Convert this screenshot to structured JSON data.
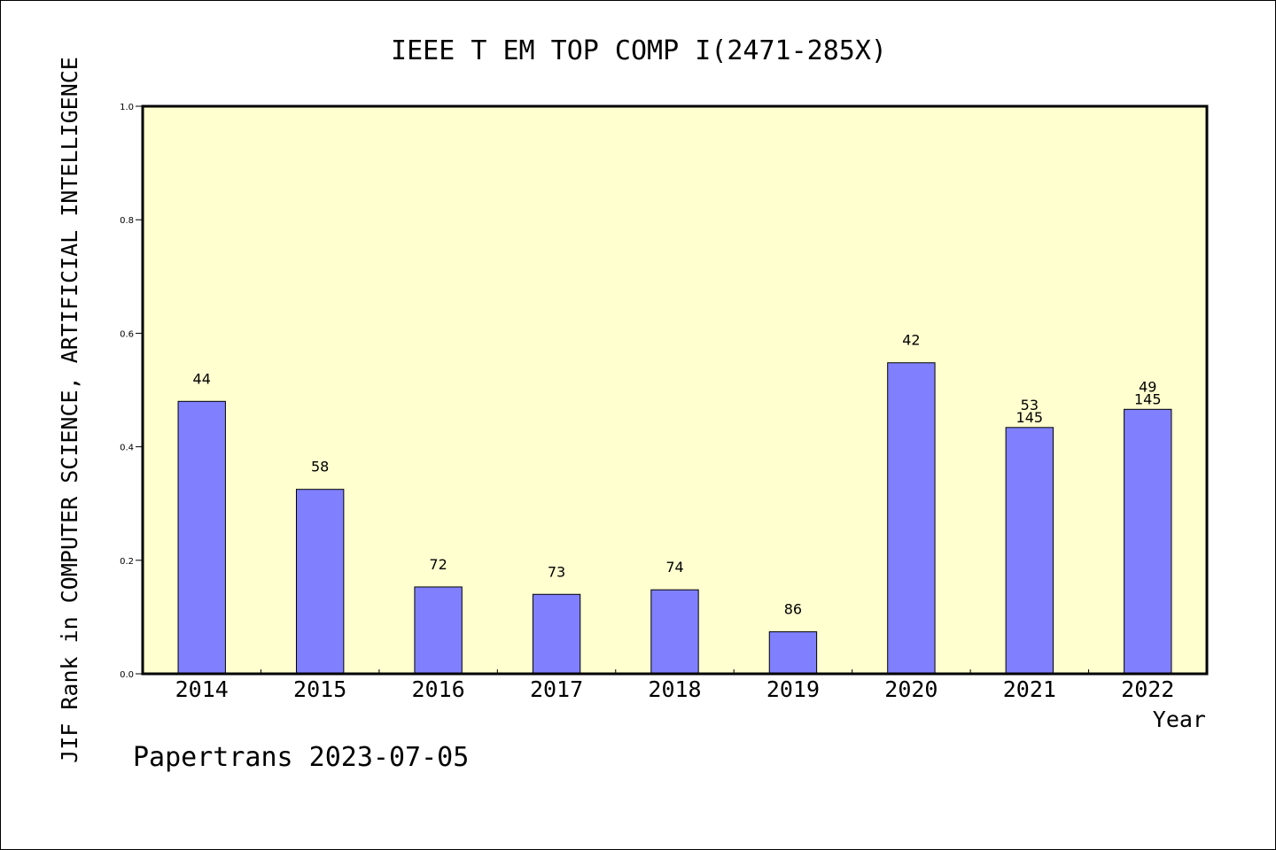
{
  "chart_data": {
    "type": "bar",
    "title": "IEEE T EM TOP COMP I(2471-285X)",
    "xlabel": "Year",
    "ylabel": "JIF Rank in COMPUTER SCIENCE, ARTIFICIAL INTELLIGENCE",
    "ylim": [
      0,
      1.0
    ],
    "yticks": [
      "0.0",
      "0.2",
      "0.4",
      "0.6",
      "0.8",
      "1.0"
    ],
    "categories": [
      "2014",
      "2015",
      "2016",
      "2017",
      "2018",
      "2019",
      "2020",
      "2021",
      "2022"
    ],
    "values": [
      0.48,
      0.325,
      0.153,
      0.14,
      0.148,
      0.074,
      0.548,
      0.434,
      0.466
    ],
    "labels": [
      [
        "44"
      ],
      [
        "58"
      ],
      [
        "72"
      ],
      [
        "73"
      ],
      [
        "74"
      ],
      [
        "86"
      ],
      [
        "42"
      ],
      [
        "53",
        "145"
      ],
      [
        "49",
        "145"
      ]
    ],
    "grid": false,
    "colors": {
      "bar_fill": "#8080ff",
      "bar_stroke": "#000000",
      "plot_background": "#ffffd0",
      "page_background": "#ffffff"
    }
  },
  "footer": "Papertrans 2023-07-05"
}
